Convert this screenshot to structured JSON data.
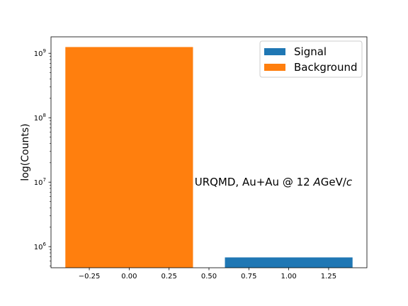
{
  "chart_data": {
    "type": "bar",
    "title": "",
    "xlabel": "",
    "ylabel": "log(Counts)",
    "y_scale": "log",
    "xlim": [
      -0.49,
      1.49
    ],
    "ylim": [
      470000,
      1800000000
    ],
    "x_ticks": [
      -0.25,
      0.0,
      0.25,
      0.5,
      0.75,
      1.0,
      1.25
    ],
    "x_tick_labels": [
      "−0.25",
      "0.00",
      "0.25",
      "0.50",
      "0.75",
      "1.00",
      "1.25"
    ],
    "y_ticks": [
      {
        "value": 1000000,
        "base": "10",
        "exp": "6"
      },
      {
        "value": 10000000,
        "base": "10",
        "exp": "7"
      },
      {
        "value": 100000000,
        "base": "10",
        "exp": "8"
      },
      {
        "value": 1000000000,
        "base": "10",
        "exp": "9"
      }
    ],
    "bar_width": 0.8,
    "series": [
      {
        "name": "Signal",
        "color": "#1f77b4",
        "x": [
          1
        ],
        "values": [
          680000
        ]
      },
      {
        "name": "Background",
        "color": "#ff7f0e",
        "x": [
          0
        ],
        "values": [
          1250000000
        ]
      }
    ],
    "legend": {
      "position": "top-right",
      "entries": [
        "Signal",
        "Background"
      ]
    },
    "annotation": {
      "prefix": "URQMD, Au+Au @ 12 ",
      "italic_a": "A",
      "mid": "GeV/",
      "italic_c": "c",
      "x": 0.41,
      "y": 10000000
    },
    "grid": false
  }
}
